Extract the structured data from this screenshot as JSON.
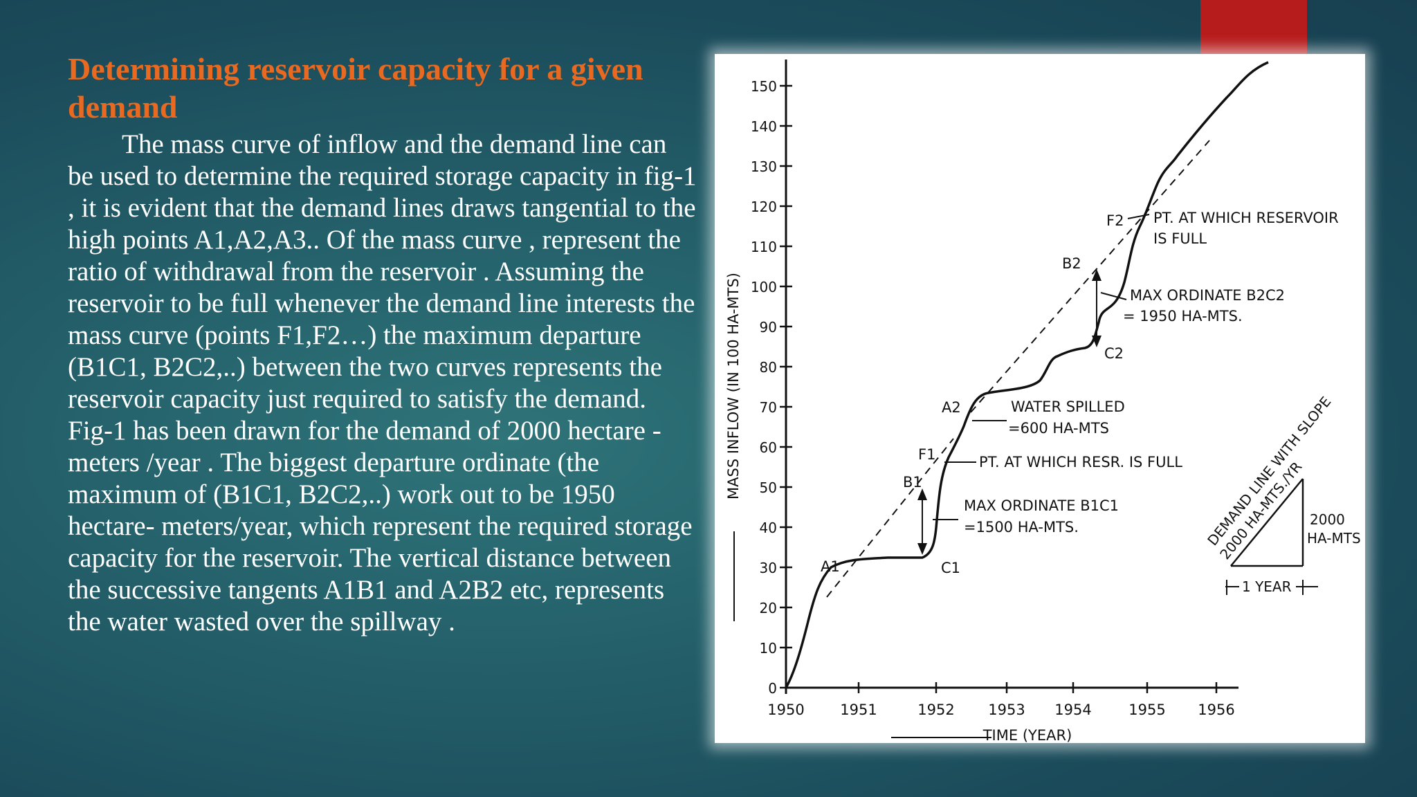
{
  "slide": {
    "title": "Determining reservoir capacity for a given demand",
    "paragraph_1": "The mass curve of inflow and the demand line can be used to determine the required storage capacity in fig-1 , it is evident that the demand lines draws tangential to the high points A1,A2,A3.. Of the mass curve , represent the ratio of withdrawal from the reservoir . Assuming the reservoir to be full whenever the demand line interests the mass curve (points F1,F2…) the maximum departure (B1C1, B2C2,..) between the two curves represents the reservoir capacity just required to satisfy the demand.",
    "paragraph_2": "Fig-1 has been drawn for the demand of 2000 hectare - meters /year . The biggest departure ordinate (the maximum of (B1C1, B2C2,..) work out to be 1950 hectare- meters/year, which represent the required storage capacity for the reservoir. The vertical distance between the successive tangents A1B1 and A2B2 etc, represents the water wasted over the spillway .",
    "accent_color": "#b71c1c",
    "title_color": "#e8691f"
  },
  "figure": {
    "y_axis_label": "MASS INFLOW (IN 100 HA-MTS)",
    "x_axis_label": "TIME (YEAR)",
    "y_ticks": [
      "0",
      "10",
      "20",
      "30",
      "40",
      "50",
      "60",
      "70",
      "80",
      "90",
      "100",
      "110",
      "120",
      "130",
      "140",
      "150"
    ],
    "x_ticks": [
      "1950",
      "1951",
      "1952",
      "1953",
      "1954",
      "1955",
      "1956"
    ],
    "points": {
      "a1": "A1",
      "a2": "A2",
      "b1": "B1",
      "b2": "B2",
      "c1": "C1",
      "c2": "C2",
      "f1": "F1",
      "f2": "F2"
    },
    "annotations": {
      "pt_full_line1": "PT. AT WHICH RESERVOIR",
      "pt_full_line2": "IS FULL",
      "max_b2c2_line1": "MAX  ORDINATE B2C2",
      "max_b2c2_line2": "= 1950 HA-MTS.",
      "water_spilled_line1": "WATER SPILLED",
      "water_spilled_line2": "=600 HA-MTS",
      "resr_full": "PT. AT WHICH RESR. IS FULL",
      "max_b1c1_line1": "MAX  ORDINATE B1C1",
      "max_b1c1_line2": "=1500 HA-MTS."
    },
    "demand_legend": {
      "label_line1": "DEMAND LINE WITH SLOPE",
      "label_line2": "2000 HA-MTS./YR",
      "rise_line1": "2000",
      "rise_line2": "HA-MTS",
      "run": "1 YEAR"
    }
  }
}
